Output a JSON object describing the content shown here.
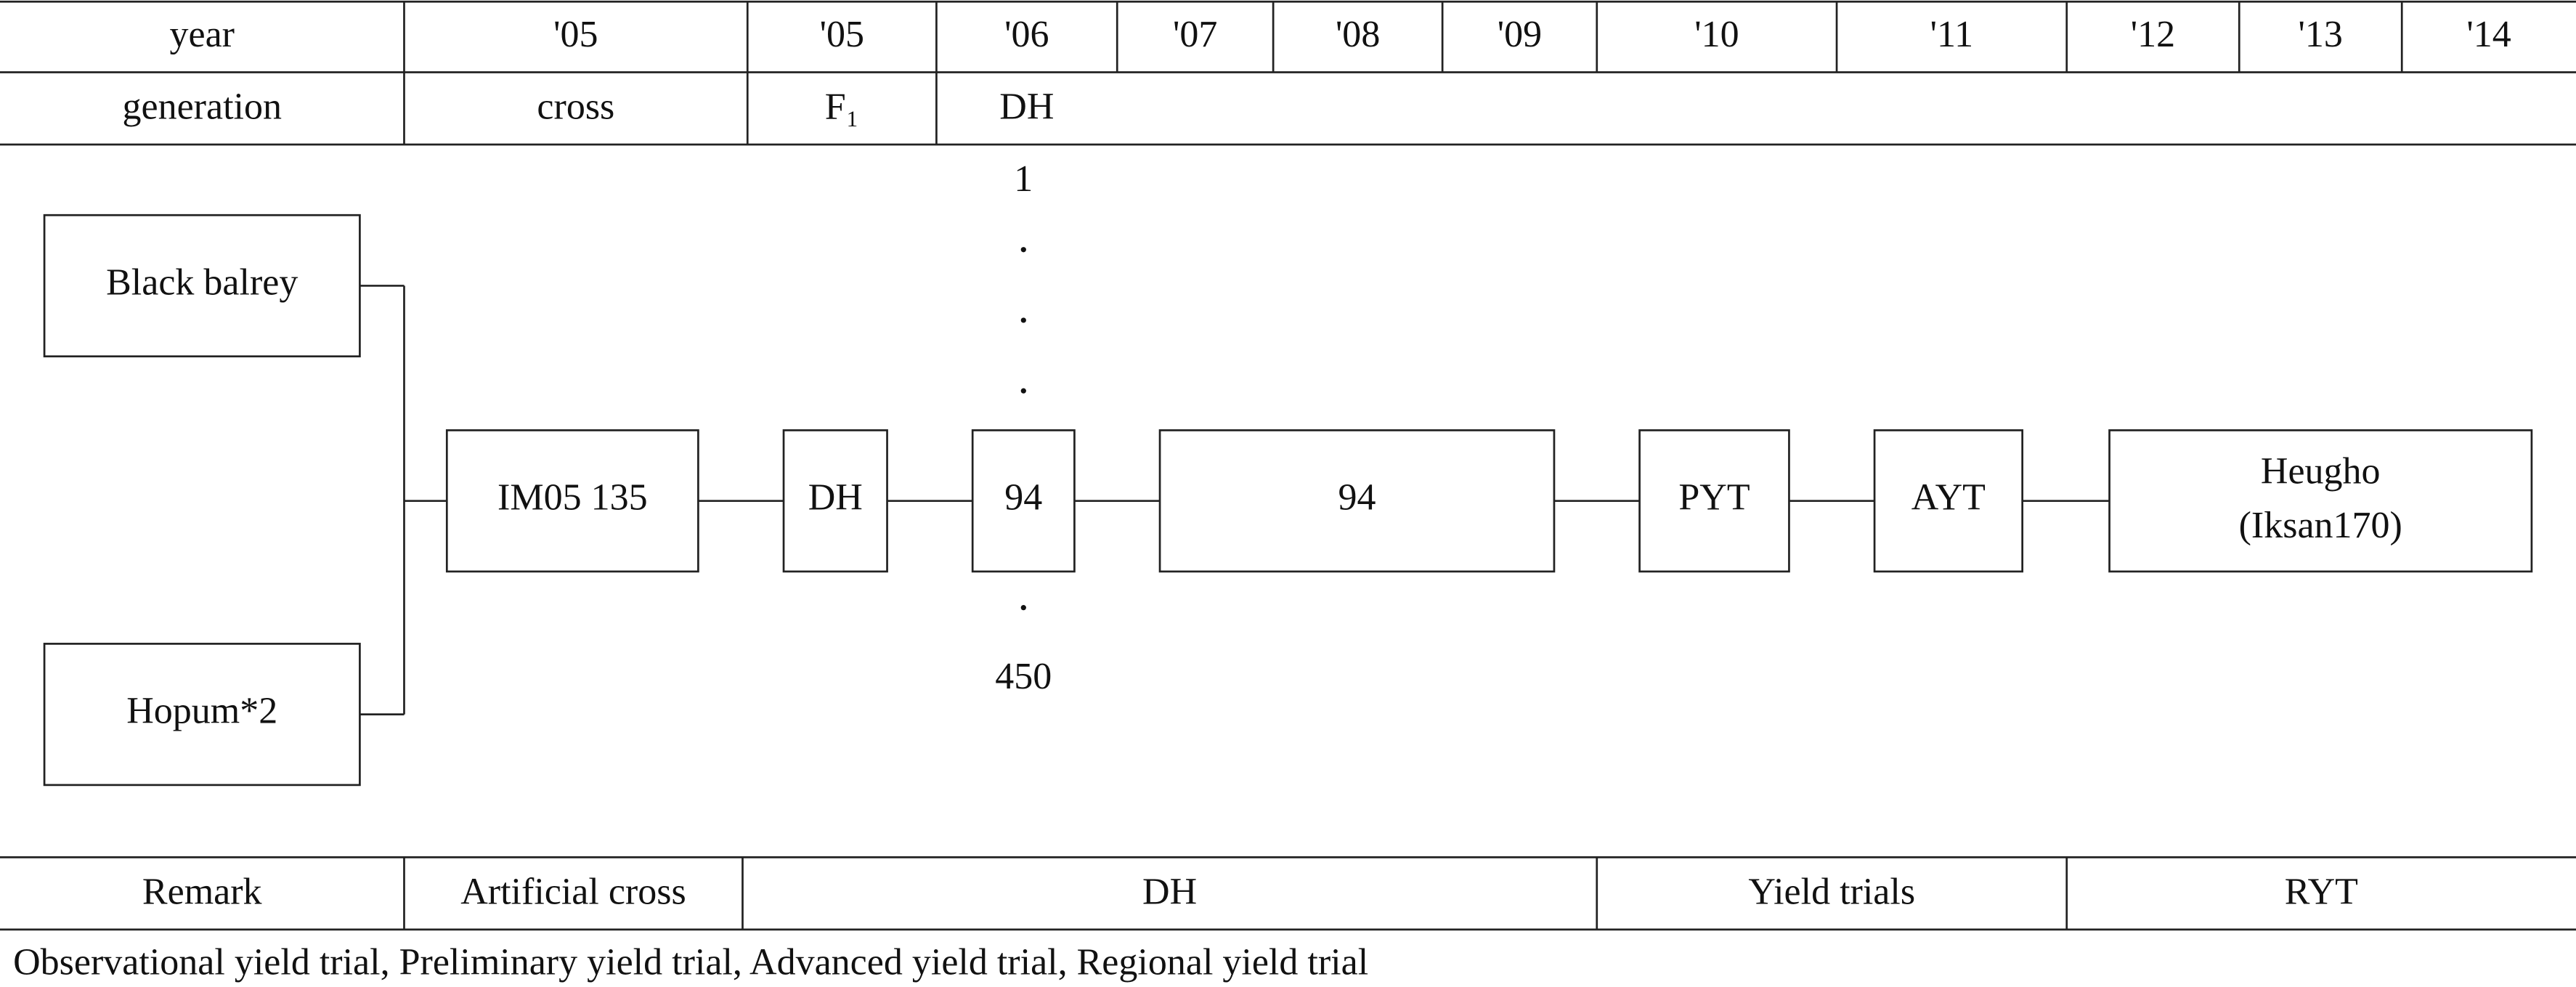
{
  "header": {
    "year_label": "year",
    "years": [
      "'05",
      "'05",
      "'06",
      "'07",
      "'08",
      "'09",
      "'10",
      "'11",
      "'12",
      "'13",
      "'14"
    ],
    "generation_label": "generation",
    "generations": [
      "cross",
      "F₁",
      "DH"
    ]
  },
  "pedigree": {
    "parents": [
      "Black balrey",
      "Hopum*2"
    ],
    "line_range": {
      "start": "1",
      "end": "450"
    },
    "nodes": [
      {
        "label": "IM05 135"
      },
      {
        "label": "DH"
      },
      {
        "label": "94"
      },
      {
        "label": "94"
      },
      {
        "label": "PYT"
      },
      {
        "label": "AYT"
      },
      {
        "label": "Heugho",
        "alias": "(Iksan170)"
      }
    ]
  },
  "remark": {
    "label": "Remark",
    "stages": [
      "Artificial cross",
      "DH",
      "Yield trials",
      "RYT"
    ]
  },
  "footnote": "Observational yield trial, Preliminary yield trial, Advanced yield trial, Regional yield trial"
}
